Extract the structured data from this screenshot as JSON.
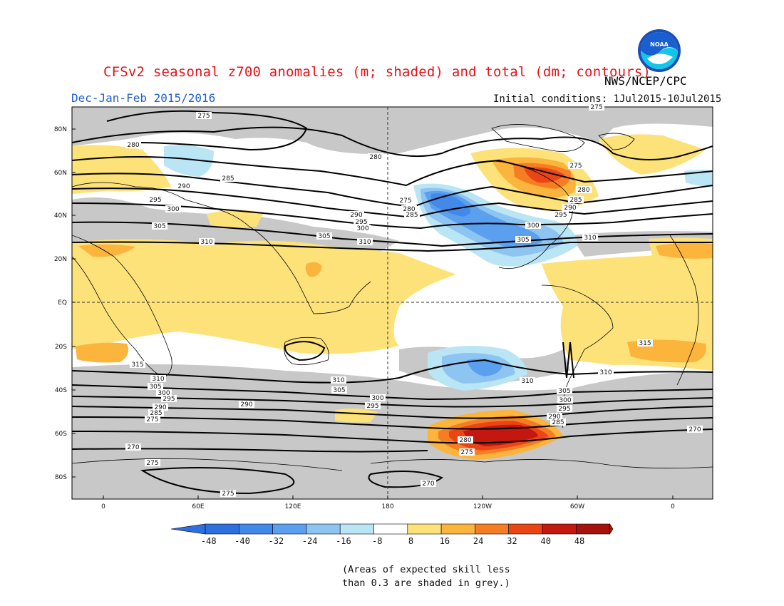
{
  "header": {
    "title": "CFSv2 seasonal z700 anomalies (m; shaded) and total (dm; contours)",
    "agency": "NWS/NCEP/CPC",
    "period": "Dec-Jan-Feb 2015/2016",
    "initial_conditions": "Initial conditions: 1Jul2015-10Jul2015"
  },
  "logo": {
    "icon": "noaa-logo-icon",
    "text": "NOAA"
  },
  "map": {
    "lat_ticks": [
      "80N",
      "60N",
      "40N",
      "20N",
      "EQ",
      "20S",
      "40S",
      "60S",
      "80S"
    ],
    "lon_ticks": [
      "0",
      "60E",
      "120E",
      "180",
      "120W",
      "60W",
      "0"
    ],
    "contour_labels": [
      "275",
      "280",
      "285",
      "290",
      "295",
      "300",
      "305",
      "310",
      "315",
      "270"
    ],
    "colors": {
      "land_outline": "#000000",
      "skill_grey": "#c8c8c8"
    }
  },
  "colorbar": {
    "labels": [
      "-48",
      "-40",
      "-32",
      "-24",
      "-16",
      "-8",
      "8",
      "16",
      "24",
      "32",
      "40",
      "48"
    ],
    "colors": [
      "#2e6fe0",
      "#4389ea",
      "#5ba0ef",
      "#8ec4f2",
      "#b9e5f5",
      "#ffffff",
      "#fde27a",
      "#fbb43c",
      "#f57d24",
      "#eb4516",
      "#c3170f",
      "#a5110b"
    ]
  },
  "footnote": {
    "line1": "(Areas of expected skill less",
    "line2": "than 0.3 are shaded in grey.)"
  }
}
